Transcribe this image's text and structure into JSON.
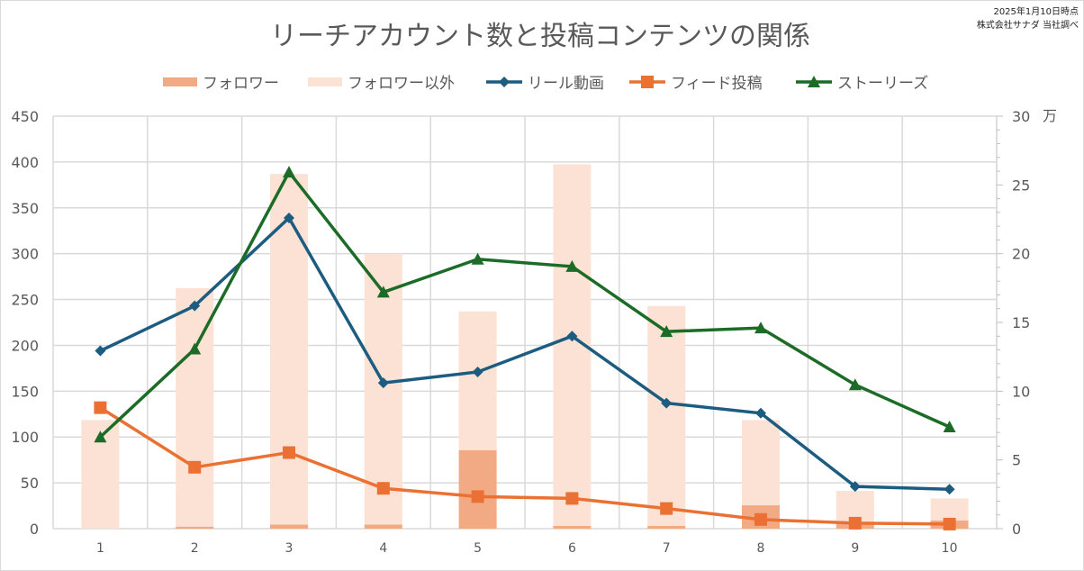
{
  "note": {
    "line1": "2025年1月10日時点",
    "line2": "株式会社サナダ 当社調べ"
  },
  "chart_data": {
    "type": "bar+line",
    "title": "リーチアカウント数と投稿コンテンツの関係",
    "categories": [
      "1",
      "2",
      "3",
      "4",
      "5",
      "6",
      "7",
      "8",
      "9",
      "10"
    ],
    "left_axis": {
      "ylim": [
        0,
        450
      ],
      "ticks": [
        "0",
        "50",
        "100",
        "150",
        "200",
        "250",
        "300",
        "350",
        "400",
        "450"
      ]
    },
    "right_axis": {
      "ylim": [
        0,
        30
      ],
      "ticks": [
        "0",
        "5",
        "10",
        "15",
        "20",
        "25",
        "30"
      ],
      "unit": "万"
    },
    "grid": true,
    "legend_position": "top",
    "bar_series": [
      {
        "name": "フォロワー",
        "axis": "right",
        "color": "#f2aa84",
        "values": [
          0.0,
          0.15,
          0.3,
          0.3,
          5.7,
          0.2,
          0.2,
          1.7,
          0.4,
          0.6
        ]
      },
      {
        "name": "フォロワー以外",
        "axis": "right",
        "color": "#fbe2d5",
        "values": [
          7.9,
          17.35,
          25.5,
          19.7,
          10.1,
          26.3,
          16.0,
          6.2,
          2.35,
          1.6
        ]
      }
    ],
    "line_series": [
      {
        "name": "リール動画",
        "axis": "left",
        "color": "#1b5c80",
        "marker": "diamond",
        "values": [
          194,
          243,
          339,
          159,
          171,
          210,
          137,
          126,
          46,
          43
        ]
      },
      {
        "name": "フィード投稿",
        "axis": "left",
        "color": "#ea7133",
        "marker": "square",
        "values": [
          132,
          67,
          83,
          44,
          35,
          33,
          22,
          10,
          6,
          5
        ]
      },
      {
        "name": "ストーリーズ",
        "axis": "left",
        "color": "#1c6b26",
        "marker": "triangle",
        "values": [
          100,
          196,
          389,
          258,
          294,
          286,
          215,
          219,
          157,
          111
        ]
      }
    ]
  }
}
